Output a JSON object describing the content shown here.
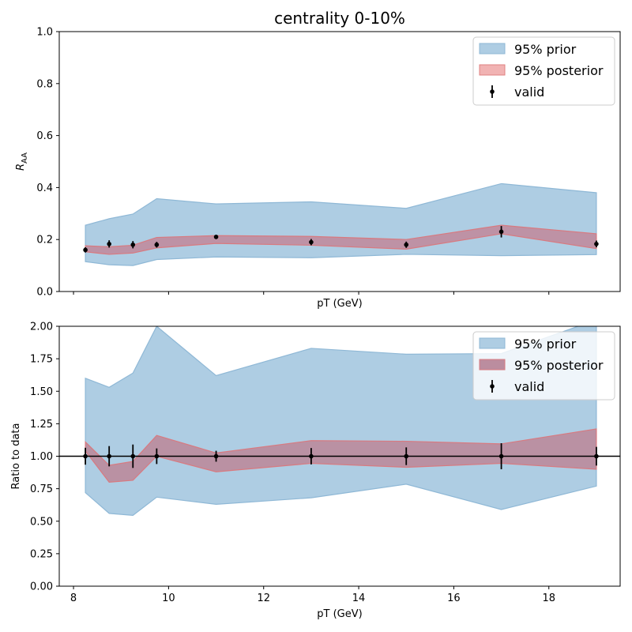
{
  "chart_data": [
    {
      "type": "area",
      "title": "centrality 0-10%",
      "xlabel": "pT (GeV)",
      "ylabel_main": "R",
      "ylabel_sub": "AA",
      "xlim": [
        7.7,
        19.5
      ],
      "ylim": [
        0,
        1.0
      ],
      "xticks": [
        8,
        10,
        12,
        14,
        16,
        18
      ],
      "yticks": [
        0.0,
        0.2,
        0.4,
        0.6,
        0.8,
        1.0
      ],
      "ytick_labels": [
        "0.0",
        "0.2",
        "0.4",
        "0.6",
        "0.8",
        "1.0"
      ],
      "show_xtick_labels": false,
      "hline": null,
      "legend_position": "upper right",
      "legend": [
        {
          "label": "95% prior",
          "kind": "band",
          "fill": "#aecde3",
          "stroke": "#8fb8d6"
        },
        {
          "label": "95% posterior",
          "kind": "band",
          "fill": "#f1b3b3",
          "stroke": "#e08080"
        },
        {
          "label": "valid",
          "kind": "errorbar",
          "color": "#000000"
        }
      ],
      "x": [
        8.25,
        8.75,
        9.25,
        9.75,
        11,
        13,
        15,
        17,
        19
      ],
      "prior_upper": [
        0.255,
        0.28,
        0.298,
        0.357,
        0.337,
        0.345,
        0.32,
        0.415,
        0.38
      ],
      "prior_lower": [
        0.115,
        0.103,
        0.1,
        0.123,
        0.133,
        0.13,
        0.143,
        0.138,
        0.142
      ],
      "posterior_upper": [
        0.176,
        0.172,
        0.178,
        0.208,
        0.215,
        0.212,
        0.2,
        0.255,
        0.222
      ],
      "posterior_lower": [
        0.153,
        0.143,
        0.148,
        0.168,
        0.185,
        0.178,
        0.163,
        0.222,
        0.165
      ],
      "valid_y": [
        0.16,
        0.183,
        0.18,
        0.18,
        0.21,
        0.19,
        0.18,
        0.23,
        0.183
      ],
      "valid_err": [
        0.01,
        0.014,
        0.014,
        0.011,
        0.008,
        0.012,
        0.012,
        0.022,
        0.013
      ]
    },
    {
      "type": "area",
      "title": "",
      "xlabel": "pT (GeV)",
      "ylabel_main": "Ratio to data",
      "ylabel_sub": "",
      "xlim": [
        7.7,
        19.5
      ],
      "ylim": [
        0,
        2.0
      ],
      "xticks": [
        8,
        10,
        12,
        14,
        16,
        18
      ],
      "yticks": [
        0.0,
        0.25,
        0.5,
        0.75,
        1.0,
        1.25,
        1.5,
        1.75,
        2.0
      ],
      "ytick_labels": [
        "0.00",
        "0.25",
        "0.50",
        "0.75",
        "1.00",
        "1.25",
        "1.50",
        "1.75",
        "2.00"
      ],
      "show_xtick_labels": true,
      "hline": 1.0,
      "legend_position": "upper right",
      "legend": [
        {
          "label": "95% prior",
          "kind": "band",
          "fill": "#aecde3",
          "stroke": "#8fb8d6"
        },
        {
          "label": "95% posterior",
          "kind": "band",
          "fill": "#bb8d9f",
          "stroke": "#d87a80"
        },
        {
          "label": "valid",
          "kind": "errorbar",
          "color": "#000000"
        }
      ],
      "x": [
        8.25,
        8.75,
        9.25,
        9.75,
        11,
        13,
        15,
        17,
        19
      ],
      "prior_upper": [
        1.6,
        1.53,
        1.64,
        2.0,
        1.62,
        1.83,
        1.785,
        1.79,
        2.05
      ],
      "prior_lower": [
        0.72,
        0.56,
        0.545,
        0.685,
        0.63,
        0.68,
        0.785,
        0.59,
        0.77
      ],
      "posterior_upper": [
        1.11,
        0.93,
        0.96,
        1.16,
        1.025,
        1.12,
        1.115,
        1.095,
        1.21
      ],
      "posterior_lower": [
        1.04,
        0.8,
        0.815,
        1.0,
        0.88,
        0.945,
        0.915,
        0.945,
        0.9
      ],
      "valid_y": [
        1.0,
        1.0,
        1.0,
        1.0,
        1.0,
        1.0,
        1.0,
        1.0,
        1.0
      ],
      "valid_err": [
        0.065,
        0.078,
        0.09,
        0.06,
        0.042,
        0.063,
        0.068,
        0.1,
        0.072
      ]
    }
  ],
  "colors": {
    "prior_band": "#aecde3",
    "posterior_band_top": "#f1b3b3",
    "posterior_band_bottom": "#bb8d9f",
    "marker": "#000000"
  }
}
